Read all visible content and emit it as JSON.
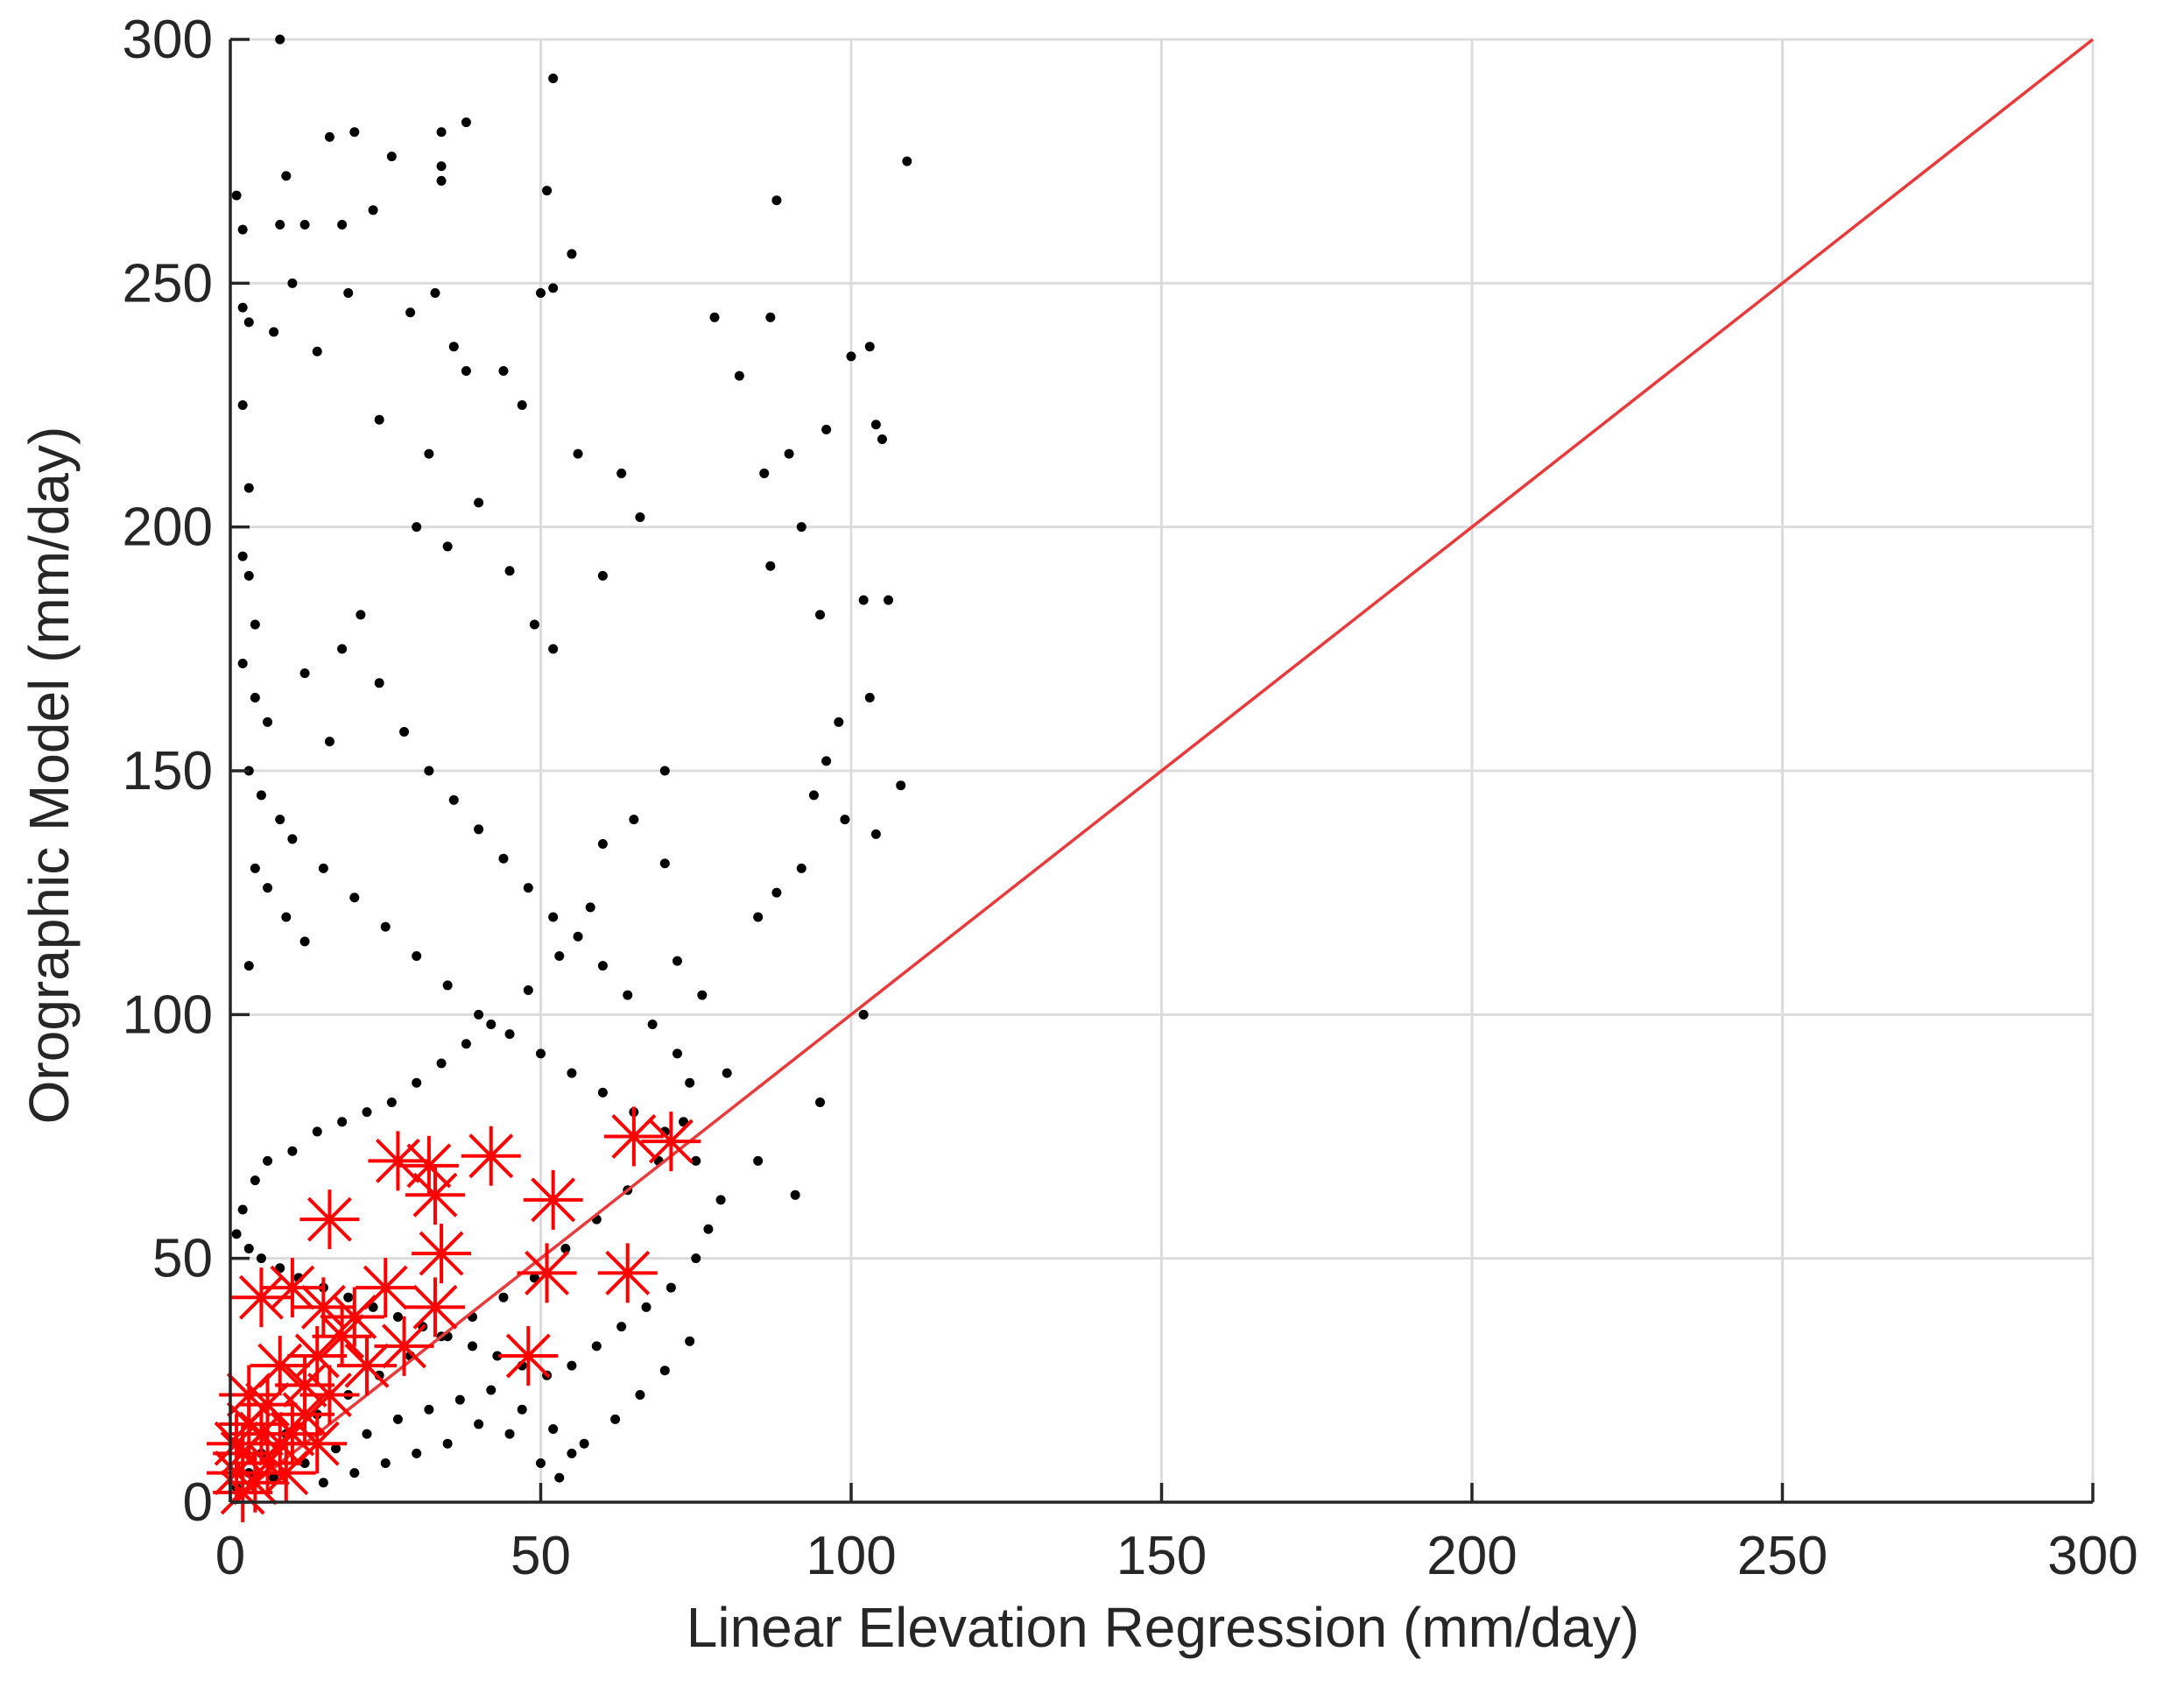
{
  "chart_data": {
    "type": "scatter",
    "title": "",
    "xlabel": "Linear Elevation Regression (mm/day)",
    "ylabel": "Orographic Model (mm/day)",
    "xlim": [
      0,
      300
    ],
    "ylim": [
      0,
      300
    ],
    "xticks": [
      0,
      50,
      100,
      150,
      200,
      250,
      300
    ],
    "yticks": [
      0,
      50,
      100,
      150,
      200,
      250,
      300
    ],
    "xtick_labels": [
      "0",
      "50",
      "100",
      "150",
      "200",
      "250",
      "300"
    ],
    "ytick_labels": [
      "0",
      "50",
      "100",
      "150",
      "200",
      "250",
      "300"
    ],
    "grid": true,
    "legend": "none",
    "colors": {
      "points": "#000000",
      "stations": "#ff0000",
      "one_to_one_line": "#e83a3a",
      "grid": "#dcdcdc",
      "axis": "#262626"
    },
    "one_to_one_line": [
      [
        0,
        0
      ],
      [
        300,
        300
      ]
    ],
    "series": [
      {
        "marker": "dot",
        "points": [
          [
            1,
            268
          ],
          [
            2,
            261
          ],
          [
            2,
            245
          ],
          [
            3,
            242
          ],
          [
            2,
            225
          ],
          [
            3,
            208
          ],
          [
            2,
            194
          ],
          [
            3,
            190
          ],
          [
            4,
            180
          ],
          [
            2,
            172
          ],
          [
            4,
            165
          ],
          [
            6,
            160
          ],
          [
            3,
            150
          ],
          [
            5,
            145
          ],
          [
            8,
            140
          ],
          [
            4,
            130
          ],
          [
            6,
            126
          ],
          [
            9,
            120
          ],
          [
            12,
            115
          ],
          [
            3,
            110
          ],
          [
            8,
            300
          ],
          [
            9,
            272
          ],
          [
            8,
            262
          ],
          [
            12,
            262
          ],
          [
            10,
            250
          ],
          [
            7,
            240
          ],
          [
            14,
            236
          ],
          [
            18,
            262
          ],
          [
            20,
            281
          ],
          [
            16,
            280
          ],
          [
            19,
            248
          ],
          [
            23,
            265
          ],
          [
            24,
            222
          ],
          [
            26,
            276
          ],
          [
            34,
            281
          ],
          [
            38,
            283
          ],
          [
            34,
            274
          ],
          [
            34,
            271
          ],
          [
            29,
            244
          ],
          [
            33,
            248
          ],
          [
            52,
            292
          ],
          [
            51,
            269
          ],
          [
            52,
            249
          ],
          [
            50,
            248
          ],
          [
            55,
            256
          ],
          [
            36,
            237
          ],
          [
            38,
            232
          ],
          [
            44,
            232
          ],
          [
            47,
            225
          ],
          [
            56,
            215
          ],
          [
            32,
            215
          ],
          [
            30,
            200
          ],
          [
            35,
            196
          ],
          [
            40,
            205
          ],
          [
            45,
            191
          ],
          [
            49,
            180
          ],
          [
            52,
            175
          ],
          [
            60,
            190
          ],
          [
            63,
            211
          ],
          [
            66,
            202
          ],
          [
            70,
            150
          ],
          [
            78,
            243
          ],
          [
            82,
            231
          ],
          [
            87,
            243
          ],
          [
            88,
            267
          ],
          [
            86,
            211
          ],
          [
            90,
            215
          ],
          [
            87,
            192
          ],
          [
            92,
            200
          ],
          [
            95,
            182
          ],
          [
            96,
            220
          ],
          [
            100,
            235
          ],
          [
            103,
            237
          ],
          [
            104,
            221
          ],
          [
            105,
            218
          ],
          [
            106,
            185
          ],
          [
            102,
            185
          ],
          [
            108,
            147
          ],
          [
            109,
            275
          ],
          [
            103,
            165
          ],
          [
            98,
            160
          ],
          [
            96,
            152
          ],
          [
            94,
            145
          ],
          [
            99,
            140
          ],
          [
            104,
            137
          ],
          [
            92,
            130
          ],
          [
            88,
            125
          ],
          [
            85,
            120
          ],
          [
            102,
            100
          ],
          [
            95,
            82
          ],
          [
            91,
            63
          ],
          [
            85,
            70
          ],
          [
            80,
            88
          ],
          [
            76,
            104
          ],
          [
            72,
            111
          ],
          [
            70,
            131
          ],
          [
            65,
            140
          ],
          [
            60,
            135
          ],
          [
            58,
            122
          ],
          [
            53,
            112
          ],
          [
            48,
            105
          ],
          [
            42,
            98
          ],
          [
            38,
            94
          ],
          [
            34,
            90
          ],
          [
            30,
            86
          ],
          [
            26,
            82
          ],
          [
            22,
            80
          ],
          [
            18,
            78
          ],
          [
            14,
            76
          ],
          [
            10,
            72
          ],
          [
            6,
            70
          ],
          [
            4,
            66
          ],
          [
            2,
            60
          ],
          [
            1,
            55
          ],
          [
            3,
            52
          ],
          [
            5,
            50
          ],
          [
            8,
            48
          ],
          [
            11,
            46
          ],
          [
            15,
            44
          ],
          [
            19,
            42
          ],
          [
            23,
            40
          ],
          [
            27,
            38
          ],
          [
            31,
            36
          ],
          [
            35,
            34
          ],
          [
            39,
            32
          ],
          [
            43,
            30
          ],
          [
            47,
            28
          ],
          [
            51,
            26
          ],
          [
            55,
            28
          ],
          [
            59,
            32
          ],
          [
            63,
            36
          ],
          [
            67,
            40
          ],
          [
            71,
            44
          ],
          [
            75,
            50
          ],
          [
            77,
            56
          ],
          [
            79,
            62
          ],
          [
            75,
            70
          ],
          [
            70,
            76
          ],
          [
            65,
            80
          ],
          [
            60,
            84
          ],
          [
            55,
            88
          ],
          [
            50,
            92
          ],
          [
            45,
            96
          ],
          [
            40,
            100
          ],
          [
            35,
            106
          ],
          [
            30,
            112
          ],
          [
            25,
            118
          ],
          [
            20,
            124
          ],
          [
            15,
            130
          ],
          [
            10,
            136
          ],
          [
            16,
            156
          ],
          [
            12,
            170
          ],
          [
            18,
            175
          ],
          [
            21,
            182
          ],
          [
            24,
            168
          ],
          [
            28,
            158
          ],
          [
            32,
            150
          ],
          [
            36,
            144
          ],
          [
            40,
            138
          ],
          [
            44,
            132
          ],
          [
            48,
            126
          ],
          [
            52,
            120
          ],
          [
            56,
            116
          ],
          [
            60,
            110
          ],
          [
            64,
            104
          ],
          [
            68,
            98
          ],
          [
            72,
            92
          ],
          [
            74,
            86
          ],
          [
            73,
            78
          ],
          [
            69,
            70
          ],
          [
            64,
            64
          ],
          [
            59,
            58
          ],
          [
            54,
            52
          ],
          [
            49,
            46
          ],
          [
            44,
            42
          ],
          [
            39,
            38
          ],
          [
            34,
            34
          ],
          [
            29,
            30
          ],
          [
            24,
            26
          ],
          [
            19,
            22
          ],
          [
            14,
            18
          ],
          [
            9,
            14
          ],
          [
            5,
            10
          ],
          [
            3,
            6
          ],
          [
            1,
            3
          ],
          [
            7,
            5
          ],
          [
            12,
            8
          ],
          [
            17,
            11
          ],
          [
            22,
            14
          ],
          [
            27,
            17
          ],
          [
            32,
            19
          ],
          [
            37,
            21
          ],
          [
            42,
            23
          ],
          [
            47,
            19
          ],
          [
            52,
            15
          ],
          [
            57,
            12
          ],
          [
            62,
            17
          ],
          [
            66,
            22
          ],
          [
            70,
            27
          ],
          [
            74,
            33
          ],
          [
            50,
            8
          ],
          [
            53,
            5
          ],
          [
            55,
            10
          ],
          [
            45,
            14
          ],
          [
            40,
            16
          ],
          [
            35,
            12
          ],
          [
            30,
            10
          ],
          [
            25,
            8
          ],
          [
            20,
            6
          ],
          [
            15,
            4
          ]
        ]
      },
      {
        "marker": "asterisk",
        "points": [
          [
            27,
            70
          ],
          [
            32,
            69
          ],
          [
            42,
            71
          ],
          [
            65,
            75
          ],
          [
            71,
            74
          ],
          [
            16,
            58
          ],
          [
            33,
            63
          ],
          [
            52,
            62
          ],
          [
            34,
            51
          ],
          [
            51,
            47
          ],
          [
            64,
            47
          ],
          [
            33,
            40
          ],
          [
            48,
            30
          ],
          [
            5,
            42
          ],
          [
            10,
            44
          ],
          [
            15,
            40
          ],
          [
            20,
            38
          ],
          [
            25,
            44
          ],
          [
            28,
            32
          ],
          [
            22,
            28
          ],
          [
            18,
            34
          ],
          [
            14,
            30
          ],
          [
            12,
            24
          ],
          [
            8,
            28
          ],
          [
            6,
            20
          ],
          [
            3,
            16
          ],
          [
            2,
            10
          ],
          [
            1,
            6
          ],
          [
            2,
            2
          ],
          [
            4,
            4
          ],
          [
            6,
            8
          ],
          [
            8,
            12
          ],
          [
            10,
            14
          ],
          [
            12,
            18
          ],
          [
            14,
            12
          ],
          [
            16,
            22
          ],
          [
            5,
            14
          ],
          [
            9,
            6
          ],
          [
            3,
            22
          ],
          [
            1,
            12
          ]
        ]
      }
    ]
  }
}
